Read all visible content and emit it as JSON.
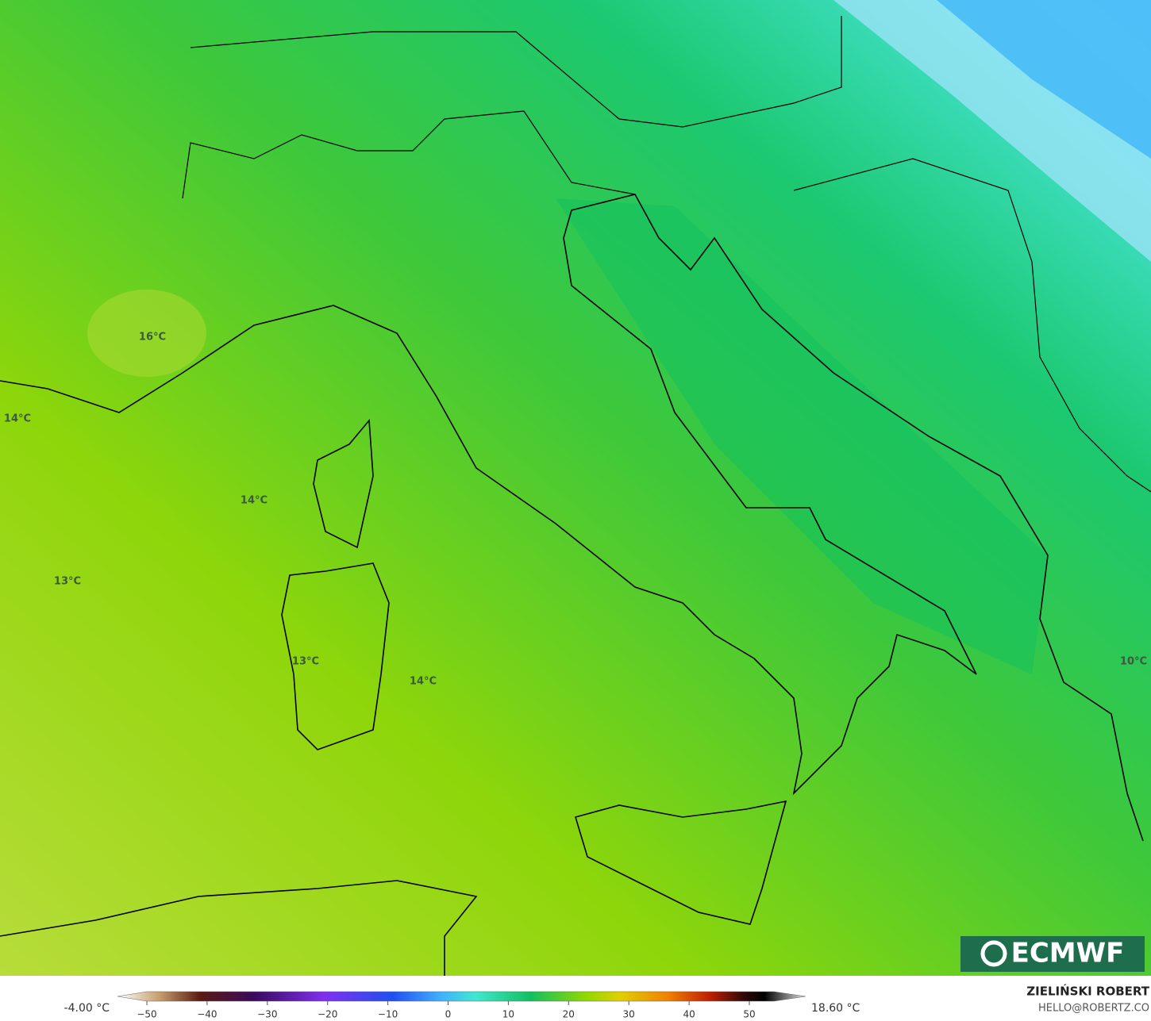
{
  "map": {
    "labels": [
      "16°C",
      "14°C",
      "14°C",
      "13°C",
      "13°C",
      "14°C",
      "10°C"
    ]
  },
  "logo": "ECMWF",
  "colorbar": {
    "min_label": "-4.00 °C",
    "max_label": "18.60 °C",
    "ticks": [
      "−50",
      "−40",
      "−30",
      "−20",
      "−10",
      "0",
      "10",
      "20",
      "30",
      "40",
      "50"
    ]
  },
  "credit": {
    "author": "ZIELIŃSKI ROBERT",
    "email": "HELLO@ROBERTZ.CO"
  }
}
